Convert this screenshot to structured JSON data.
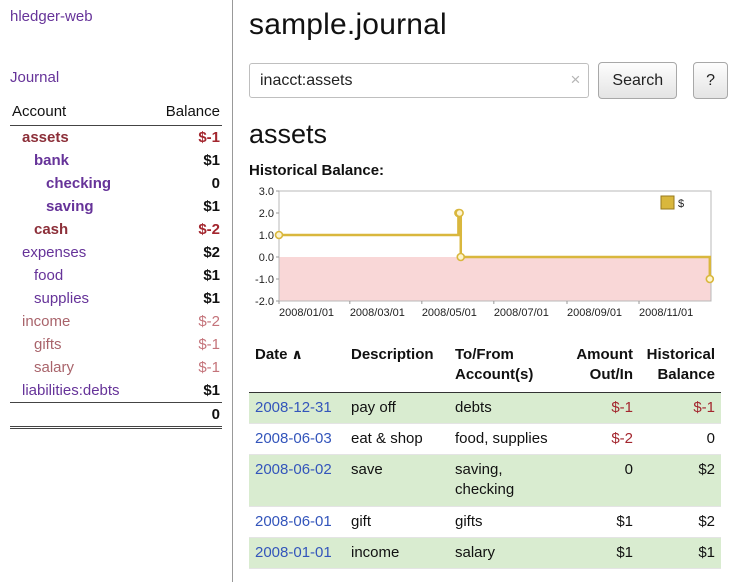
{
  "theme": {
    "purple": "#663399",
    "maroon": "#8c2f39",
    "neg": "#a3262e",
    "neg_muted": "#c4737a",
    "link_blue": "#3355bb",
    "row_green": "#d9ecd0",
    "gold": "#d9b73d",
    "pink": "#f9d7d7"
  },
  "sidebar": {
    "app_title": "hledger-web",
    "journal_label": "Journal",
    "table_header": {
      "account": "Account",
      "balance": "Balance"
    },
    "accounts": [
      {
        "name": "assets",
        "balance": "$-1",
        "indent": 0,
        "name_class": "acct-visited acct-bold",
        "bal_class": "neg"
      },
      {
        "name": "bank",
        "balance": "$1",
        "indent": 1,
        "name_class": "acct-bold",
        "bal_class": ""
      },
      {
        "name": "checking",
        "balance": "0",
        "indent": 2,
        "name_class": "acct-bold",
        "bal_class": ""
      },
      {
        "name": "saving",
        "balance": "$1",
        "indent": 2,
        "name_class": "acct-bold",
        "bal_class": ""
      },
      {
        "name": "cash",
        "balance": "$-2",
        "indent": 1,
        "name_class": "acct-visited acct-bold",
        "bal_class": "neg"
      },
      {
        "name": "expenses",
        "balance": "$2",
        "indent": 0,
        "name_class": "",
        "bal_class": ""
      },
      {
        "name": "food",
        "balance": "$1",
        "indent": 1,
        "name_class": "",
        "bal_class": ""
      },
      {
        "name": "supplies",
        "balance": "$1",
        "indent": 1,
        "name_class": "",
        "bal_class": ""
      },
      {
        "name": "income",
        "balance": "$-2",
        "indent": 0,
        "name_class": "acct-visited-muted",
        "bal_class": "neg-muted"
      },
      {
        "name": "gifts",
        "balance": "$-1",
        "indent": 1,
        "name_class": "acct-visited-muted",
        "bal_class": "neg-muted"
      },
      {
        "name": "salary",
        "balance": "$-1",
        "indent": 1,
        "name_class": "acct-visited-muted",
        "bal_class": "neg-muted"
      },
      {
        "name": "liabilities:debts",
        "balance": "$1",
        "indent": 0,
        "name_class": "",
        "bal_class": ""
      }
    ],
    "total": "0"
  },
  "main": {
    "title": "sample.journal",
    "search": {
      "value": "inacct:assets",
      "clear_icon": "×",
      "button_label": "Search",
      "help_label": "?"
    },
    "account_heading": "assets",
    "chart_label": "Historical Balance:"
  },
  "chart_data": {
    "type": "line",
    "step": true,
    "title": "Historical Balance",
    "ylim": [
      -2,
      3
    ],
    "y_ticks": [
      "3.0",
      "2.0",
      "1.0",
      "0.0",
      "-1.0",
      "-2.0"
    ],
    "x_range": [
      "2008-01-01",
      "2009-01-01"
    ],
    "x_ticks": [
      "2008/01/01",
      "2008/03/01",
      "2008/05/01",
      "2008/07/01",
      "2008/09/01",
      "2008/11/01"
    ],
    "negative_region_color": "#f9d7d7",
    "legend": {
      "label": "$",
      "position": "top-right"
    },
    "series": [
      {
        "name": "$",
        "color": "#d9b73d",
        "points": [
          [
            "2008-01-01",
            1
          ],
          [
            "2008-06-01",
            2
          ],
          [
            "2008-06-02",
            2
          ],
          [
            "2008-06-03",
            0
          ],
          [
            "2008-12-31",
            -1
          ]
        ]
      }
    ]
  },
  "register": {
    "headers": {
      "date": "Date",
      "sort_icon": "∧",
      "description": "Description",
      "account": "To/From Account(s)",
      "amount": "Amount Out/In",
      "balance": "Historical Balance"
    },
    "rows": [
      {
        "date": "2008-12-31",
        "description": "pay off",
        "accounts": "debts",
        "amount": "$-1",
        "balance": "$-1"
      },
      {
        "date": "2008-06-03",
        "description": "eat & shop",
        "accounts": "food, supplies",
        "amount": "$-2",
        "balance": "0"
      },
      {
        "date": "2008-06-02",
        "description": "save",
        "accounts": "saving, checking",
        "amount": "0",
        "balance": "$2"
      },
      {
        "date": "2008-06-01",
        "description": "gift",
        "accounts": "gifts",
        "amount": "$1",
        "balance": "$2"
      },
      {
        "date": "2008-01-01",
        "description": "income",
        "accounts": "salary",
        "amount": "$1",
        "balance": "$1"
      }
    ]
  }
}
